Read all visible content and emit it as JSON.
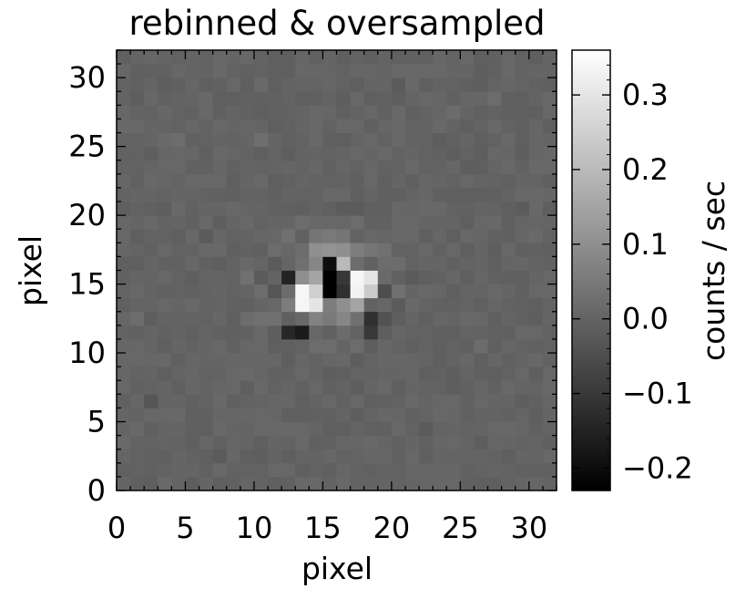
{
  "chart_data": {
    "type": "heatmap",
    "title": "rebinned & oversampled",
    "xlabel": "pixel",
    "ylabel": "pixel",
    "xlim": [
      0,
      32
    ],
    "ylim": [
      0,
      32
    ],
    "x_ticks": [
      0,
      5,
      10,
      15,
      20,
      25,
      30
    ],
    "y_ticks": [
      0,
      5,
      10,
      15,
      20,
      25,
      30
    ],
    "x_tick_labels": [
      "0",
      "5",
      "10",
      "15",
      "20",
      "25",
      "30"
    ],
    "y_tick_labels": [
      "0",
      "5",
      "10",
      "15",
      "20",
      "25",
      "30"
    ],
    "grid": false,
    "colormap": "grayscale",
    "background_value": 0.0,
    "colorbar": {
      "label": "counts / sec",
      "range": [
        -0.23,
        0.36
      ],
      "ticks": [
        -0.2,
        -0.1,
        0.0,
        0.1,
        0.2,
        0.3
      ],
      "tick_labels": [
        "−0.2",
        "−0.1",
        "0.0",
        "0.1",
        "0.2",
        "0.3"
      ],
      "placement": "right"
    },
    "cells": [
      {
        "x": 15,
        "y": 14,
        "v": -0.23
      },
      {
        "x": 15,
        "y": 15,
        "v": -0.23
      },
      {
        "x": 15,
        "y": 16,
        "v": -0.2
      },
      {
        "x": 16,
        "y": 14,
        "v": -0.12
      },
      {
        "x": 16,
        "y": 15,
        "v": -0.1
      },
      {
        "x": 16,
        "y": 16,
        "v": 0.2
      },
      {
        "x": 13,
        "y": 13,
        "v": 0.34
      },
      {
        "x": 13,
        "y": 14,
        "v": 0.34
      },
      {
        "x": 14,
        "y": 13,
        "v": 0.3
      },
      {
        "x": 14,
        "y": 14,
        "v": 0.25
      },
      {
        "x": 14,
        "y": 15,
        "v": 0.15
      },
      {
        "x": 13,
        "y": 15,
        "v": 0.1
      },
      {
        "x": 16,
        "y": 13,
        "v": 0.1
      },
      {
        "x": 17,
        "y": 14,
        "v": 0.33
      },
      {
        "x": 17,
        "y": 15,
        "v": 0.34
      },
      {
        "x": 18,
        "y": 15,
        "v": 0.3
      },
      {
        "x": 18,
        "y": 14,
        "v": 0.24
      },
      {
        "x": 17,
        "y": 13,
        "v": 0.15
      },
      {
        "x": 12,
        "y": 15,
        "v": -0.15
      },
      {
        "x": 12,
        "y": 14,
        "v": 0.02
      },
      {
        "x": 12,
        "y": 13,
        "v": 0.06
      },
      {
        "x": 12,
        "y": 11,
        "v": -0.14
      },
      {
        "x": 13,
        "y": 11,
        "v": -0.17
      },
      {
        "x": 14,
        "y": 12,
        "v": 0.07
      },
      {
        "x": 15,
        "y": 12,
        "v": 0.05
      },
      {
        "x": 16,
        "y": 12,
        "v": 0.08
      },
      {
        "x": 15,
        "y": 13,
        "v": 0.06
      },
      {
        "x": 18,
        "y": 12,
        "v": -0.12
      },
      {
        "x": 18,
        "y": 11,
        "v": -0.1
      },
      {
        "x": 17,
        "y": 12,
        "v": 0.03
      },
      {
        "x": 19,
        "y": 12,
        "v": -0.04
      },
      {
        "x": 19,
        "y": 14,
        "v": -0.05
      },
      {
        "x": 14,
        "y": 16,
        "v": 0.08
      },
      {
        "x": 13,
        "y": 16,
        "v": 0.03
      },
      {
        "x": 17,
        "y": 16,
        "v": 0.02
      },
      {
        "x": 14,
        "y": 17,
        "v": 0.1
      },
      {
        "x": 15,
        "y": 17,
        "v": 0.11
      },
      {
        "x": 16,
        "y": 17,
        "v": 0.1
      },
      {
        "x": 17,
        "y": 17,
        "v": 0.06
      },
      {
        "x": 18,
        "y": 17,
        "v": 0.04
      },
      {
        "x": 14,
        "y": 18,
        "v": 0.04
      },
      {
        "x": 15,
        "y": 18,
        "v": 0.05
      },
      {
        "x": 16,
        "y": 18,
        "v": 0.04
      },
      {
        "x": 13,
        "y": 17,
        "v": 0.02
      },
      {
        "x": 19,
        "y": 17,
        "v": 0.03
      },
      {
        "x": 19,
        "y": 16,
        "v": 0.02
      },
      {
        "x": 20,
        "y": 16,
        "v": 0.02
      },
      {
        "x": 12,
        "y": 18,
        "v": 0.03
      },
      {
        "x": 13,
        "y": 19,
        "v": 0.02
      },
      {
        "x": 17,
        "y": 19,
        "v": 0.02
      },
      {
        "x": 9,
        "y": 15,
        "v": 0.03
      },
      {
        "x": 9,
        "y": 12,
        "v": 0.02
      },
      {
        "x": 10,
        "y": 12,
        "v": 0.03
      },
      {
        "x": 10,
        "y": 15,
        "v": -0.02
      },
      {
        "x": 11,
        "y": 14,
        "v": -0.03
      },
      {
        "x": 10,
        "y": 14,
        "v": 0.02
      },
      {
        "x": 11,
        "y": 12,
        "v": 0.03
      },
      {
        "x": 11,
        "y": 16,
        "v": -0.02
      },
      {
        "x": 20,
        "y": 14,
        "v": 0.03
      },
      {
        "x": 20,
        "y": 13,
        "v": -0.02
      },
      {
        "x": 21,
        "y": 15,
        "v": -0.02
      },
      {
        "x": 14,
        "y": 10,
        "v": 0.02
      },
      {
        "x": 15,
        "y": 10,
        "v": 0.02
      },
      {
        "x": 16,
        "y": 11,
        "v": 0.02
      },
      {
        "x": 17,
        "y": 10,
        "v": 0.02
      },
      {
        "x": 16,
        "y": 20,
        "v": -0.02
      },
      {
        "x": 17,
        "y": 20,
        "v": -0.02
      },
      {
        "x": 11,
        "y": 17,
        "v": 0.02
      },
      {
        "x": 2,
        "y": 6,
        "v": -0.03
      },
      {
        "x": 4,
        "y": 25,
        "v": 0.02
      },
      {
        "x": 10,
        "y": 25,
        "v": 0.025
      },
      {
        "x": 24,
        "y": 27,
        "v": 0.02
      },
      {
        "x": 26,
        "y": 10,
        "v": 0.02
      },
      {
        "x": 22,
        "y": 4,
        "v": -0.02
      },
      {
        "x": 7,
        "y": 2,
        "v": -0.02
      },
      {
        "x": 29,
        "y": 20,
        "v": -0.02
      },
      {
        "x": 1,
        "y": 12,
        "v": 0.02
      },
      {
        "x": 6,
        "y": 18,
        "v": -0.02
      },
      {
        "x": 27,
        "y": 28,
        "v": 0.02
      },
      {
        "x": 20,
        "y": 29,
        "v": -0.02
      }
    ]
  }
}
